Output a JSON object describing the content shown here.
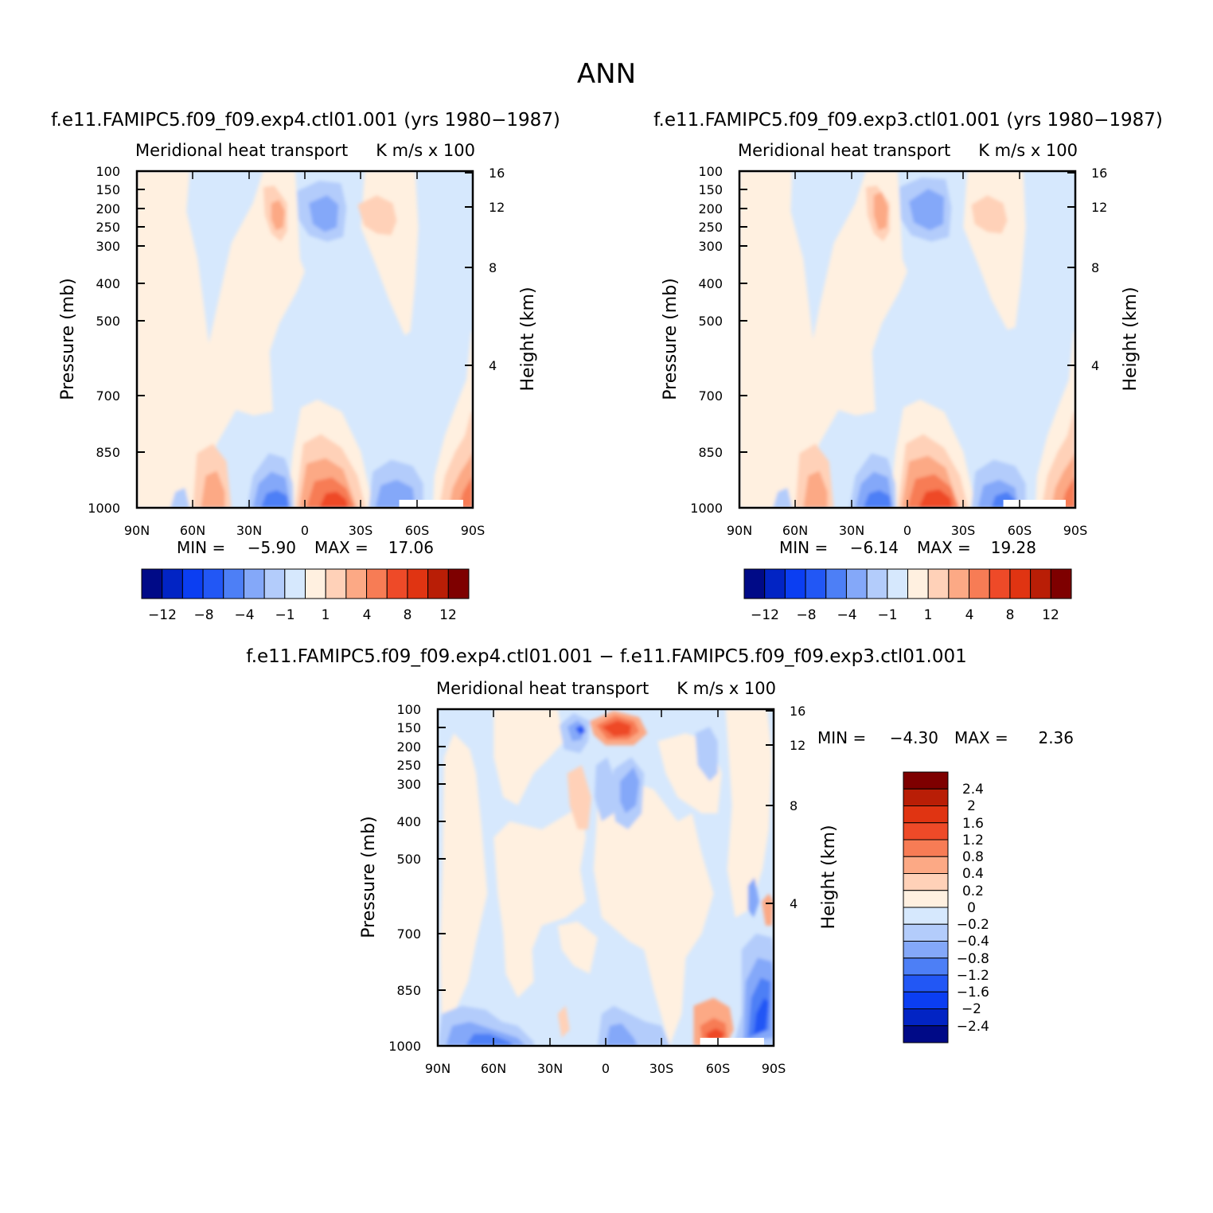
{
  "page_title": "ANN",
  "colors": {
    "positive": [
      "#fff0e0",
      "#ffd1b8",
      "#fca985",
      "#f77c55",
      "#ee4a28",
      "#e03412",
      "#b91e06",
      "#7e0000"
    ],
    "negative": [
      "#d6e8fd",
      "#b3ccfb",
      "#84a8f9",
      "#4d7ff6",
      "#2257f5",
      "#0b3ef2",
      "#0224c4",
      "#000a87"
    ]
  },
  "chart_data": [
    {
      "type": "contour",
      "title": "f.e11.FAMIPC5.f09_f09.exp4.ctl01.001 (yrs 1980−1987)",
      "left_string": "Meridional heat transport",
      "right_string": "K m/s x 100",
      "ylabel": "Pressure (mb)",
      "ylabel_right": "Height (km)",
      "xlim": [
        90,
        -90
      ],
      "ylim": [
        1000,
        100
      ],
      "x_ticks": [
        "90N",
        "60N",
        "30N",
        "0",
        "30S",
        "60S",
        "90S"
      ],
      "y_ticks": [
        "100",
        "150",
        "200",
        "250",
        "300",
        "400",
        "500",
        "700",
        "850",
        "1000"
      ],
      "height_ticks": [
        "16",
        "12",
        "8",
        "4"
      ],
      "min_text": "MIN =",
      "min_value": "−5.90",
      "max_text": "MAX =",
      "max_value": "17.06",
      "colorbar_labels": [
        "−12",
        "−8",
        "−4",
        "−1",
        "1",
        "4",
        "8",
        "12"
      ]
    },
    {
      "type": "contour",
      "title": "f.e11.FAMIPC5.f09_f09.exp3.ctl01.001 (yrs 1980−1987)",
      "left_string": "Meridional heat transport",
      "right_string": "K m/s x 100",
      "ylabel": "Pressure (mb)",
      "ylabel_right": "Height (km)",
      "xlim": [
        90,
        -90
      ],
      "ylim": [
        1000,
        100
      ],
      "x_ticks": [
        "90N",
        "60N",
        "30N",
        "0",
        "30S",
        "60S",
        "90S"
      ],
      "y_ticks": [
        "100",
        "150",
        "200",
        "250",
        "300",
        "400",
        "500",
        "700",
        "850",
        "1000"
      ],
      "height_ticks": [
        "16",
        "12",
        "8",
        "4"
      ],
      "min_text": "MIN =",
      "min_value": "−6.14",
      "max_text": "MAX =",
      "max_value": "19.28",
      "colorbar_labels": [
        "−12",
        "−8",
        "−4",
        "−1",
        "1",
        "4",
        "8",
        "12"
      ]
    },
    {
      "type": "contour",
      "title": "f.e11.FAMIPC5.f09_f09.exp4.ctl01.001 − f.e11.FAMIPC5.f09_f09.exp3.ctl01.001",
      "left_string": "Meridional heat transport",
      "right_string": "K m/s x 100",
      "ylabel": "Pressure (mb)",
      "ylabel_right": "Height (km)",
      "xlim": [
        90,
        -90
      ],
      "ylim": [
        1000,
        100
      ],
      "x_ticks": [
        "90N",
        "60N",
        "30N",
        "0",
        "30S",
        "60S",
        "90S"
      ],
      "y_ticks": [
        "100",
        "150",
        "200",
        "250",
        "300",
        "400",
        "500",
        "700",
        "850",
        "1000"
      ],
      "height_ticks": [
        "16",
        "12",
        "8",
        "4"
      ],
      "min_text": "MIN =",
      "min_value": "−4.30",
      "max_text": "MAX =",
      "max_value": "2.36",
      "colorbar_labels": [
        "2.4",
        "2",
        "1.6",
        "1.2",
        "0.8",
        "0.4",
        "0.2",
        "0",
        "−0.2",
        "−0.4",
        "−0.8",
        "−1.2",
        "−1.6",
        "−2",
        "−2.4"
      ]
    }
  ]
}
